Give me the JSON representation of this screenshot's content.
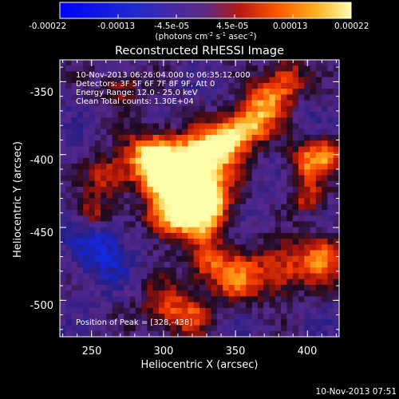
{
  "chart_data": {
    "type": "heatmap",
    "title": "Reconstructed RHESSI Image",
    "xlabel": "Heliocentric X (arcsec)",
    "ylabel": "Heliocentric Y (arcsec)",
    "xlim": [
      228,
      422
    ],
    "ylim": [
      -525,
      -335
    ],
    "x_ticks": [
      "250",
      "300",
      "350",
      "400"
    ],
    "x_tick_values": [
      250,
      300,
      350,
      400
    ],
    "y_ticks": [
      "-350",
      "-400",
      "-450",
      "-500"
    ],
    "y_tick_values": [
      -350,
      -400,
      -450,
      -500
    ],
    "colorbar": {
      "tick_labels": [
        "-0.00022",
        "-0.00013",
        "-4.5e-05",
        "4.5e-05",
        "0.00013",
        "0.00022"
      ],
      "unit_label": "(photons cm-2 s-1 asec-2)",
      "range": [
        -0.00022,
        0.00022
      ]
    },
    "info_lines": [
      "10-Nov-2013 06:26:04.000 to 06:35:12.000",
      "Detectors: 3F 5F 6F 7F 8F 9F, Att 0",
      "Energy Range: 12.0 - 25.0 keV",
      "Clean     Total counts: 1.30E+04"
    ],
    "peak_text": "Position of Peak = [328,-438]",
    "peak": {
      "x": 328,
      "y": -438
    },
    "timestamp": "10-Nov-2013 07:51",
    "colors": {
      "background": "#000000",
      "low": "#0000ff",
      "mid": "#5a2a80",
      "high": "#ffffb0"
    }
  }
}
